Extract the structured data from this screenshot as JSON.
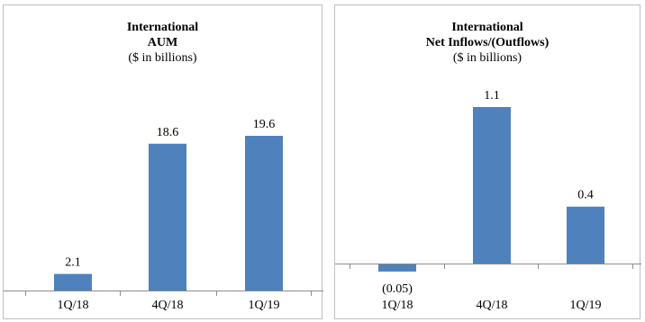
{
  "chart_data": [
    {
      "type": "bar",
      "title": "International",
      "subtitle": "AUM",
      "units": "($ in billions)",
      "categories": [
        "1Q/18",
        "4Q/18",
        "1Q/19"
      ],
      "values": [
        2.1,
        18.6,
        19.6
      ],
      "value_labels": [
        "2.1",
        "18.6",
        "19.6"
      ],
      "ylim": [
        0,
        21
      ],
      "grid": false,
      "bar_color": "#4f81bd"
    },
    {
      "type": "bar",
      "title": "International",
      "subtitle": "Net Inflows/(Outflows)",
      "units": "($ in billions)",
      "categories": [
        "1Q/18",
        "4Q/18",
        "1Q/19"
      ],
      "values": [
        -0.05,
        1.1,
        0.4
      ],
      "value_labels": [
        "(0.05)",
        "1.1",
        "0.4"
      ],
      "ylim": [
        -0.05,
        1.1
      ],
      "grid": false,
      "bar_color": "#4f81bd"
    }
  ]
}
